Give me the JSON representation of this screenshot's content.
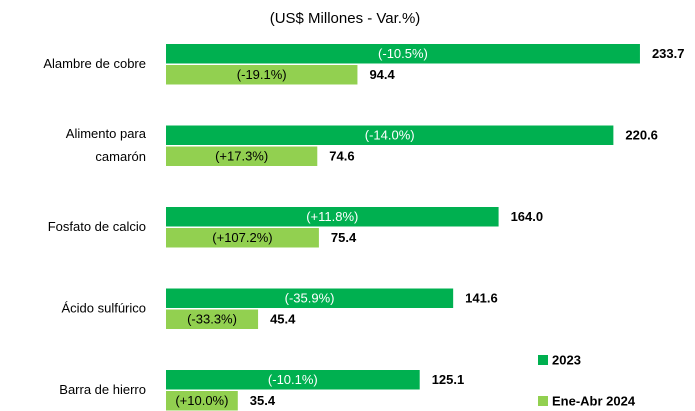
{
  "chart_data": {
    "type": "hbar",
    "subtitle": "(US$ Millones - Var.%)",
    "categories": [
      "Alambre de cobre",
      "Alimento para camarón",
      "Fosfato de calcio",
      "Ácido sulfúrico",
      "Barra de hierro"
    ],
    "xlim": [
      0,
      250
    ],
    "legend": "bottom-right",
    "series": [
      {
        "name": "2023",
        "color": "#00b050",
        "values": [
          233.7,
          220.6,
          164.0,
          141.6,
          125.1
        ],
        "value_labels": [
          "233.7",
          "220.6",
          "164.0",
          "141.6",
          "125.1"
        ],
        "change_labels": [
          "(-10.5%)",
          "(-14.0%)",
          "(+11.8%)",
          "(-35.9%)",
          "(-10.1%)"
        ]
      },
      {
        "name": "Ene-Abr 2024",
        "color": "#92d050",
        "values": [
          94.4,
          74.6,
          75.4,
          45.4,
          35.4
        ],
        "value_labels": [
          "94.4",
          "74.6",
          "75.4",
          "45.4",
          "35.4"
        ],
        "change_labels": [
          "(-19.1%)",
          "(+17.3%)",
          "(+107.2%)",
          "(-33.3%)",
          "(+10.0%)"
        ]
      }
    ]
  }
}
